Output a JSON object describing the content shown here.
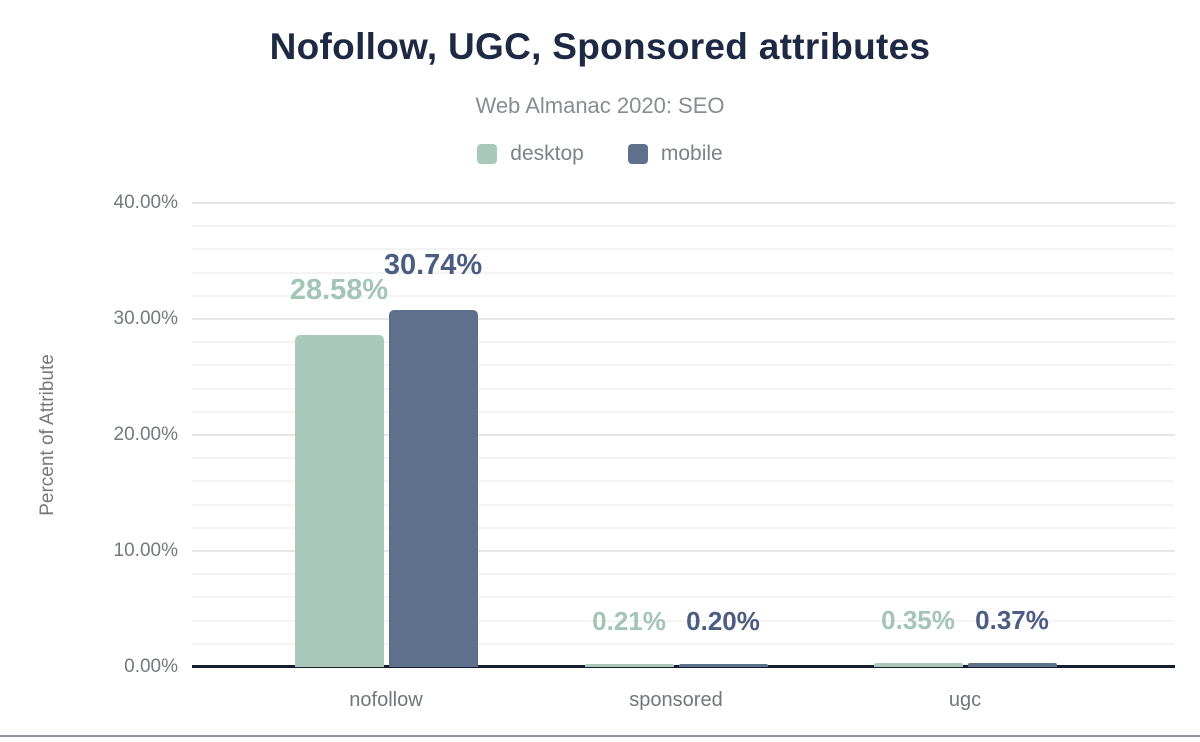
{
  "chart_data": {
    "type": "bar",
    "title": "Nofollow, UGC, Sponsored attributes",
    "subtitle": "Web Almanac 2020: SEO",
    "ylabel": "Percent of Attribute",
    "xlabel": "",
    "categories": [
      "nofollow",
      "sponsored",
      "ugc"
    ],
    "series": [
      {
        "name": "desktop",
        "color": "#a9cabb",
        "label_color": "#a2c5b5",
        "values": [
          28.58,
          0.21,
          0.35
        ],
        "labels": [
          "28.58%",
          "0.21%",
          "0.35%"
        ]
      },
      {
        "name": "mobile",
        "color": "#5f708d",
        "label_color": "#4b5d82",
        "values": [
          30.74,
          0.2,
          0.37
        ],
        "labels": [
          "30.74%",
          "0.20%",
          "0.37%"
        ]
      }
    ],
    "ylim": [
      0,
      40
    ],
    "yticks": [
      {
        "value": 40,
        "label": "40.00%"
      },
      {
        "value": 30,
        "label": "30.00%"
      },
      {
        "value": 20,
        "label": "20.00%"
      },
      {
        "value": 10,
        "label": "10.00%"
      },
      {
        "value": 0,
        "label": "0.00%"
      }
    ],
    "minor_grid_step": 2,
    "major_grid_step": 10,
    "grid": true,
    "legend_position": "top"
  }
}
